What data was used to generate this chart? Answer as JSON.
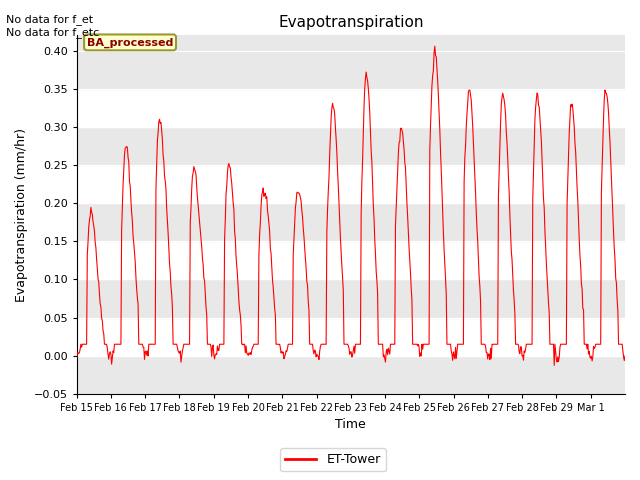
{
  "title": "Evapotranspiration",
  "xlabel": "Time",
  "ylabel": "Evapotranspiration (mm/hr)",
  "ylim": [
    -0.05,
    0.42
  ],
  "yticks": [
    -0.05,
    0.0,
    0.05,
    0.1,
    0.15,
    0.2,
    0.25,
    0.3,
    0.35,
    0.4
  ],
  "line_color": "#ff0000",
  "legend_label": "ET-Tower",
  "annotation_text": "No data for f_et\nNo data for f_etc",
  "box_label": "BA_processed",
  "fig_facecolor": "#ffffff",
  "plot_bg_color": "#f0f0f0",
  "band_color_light": "#ffffff",
  "band_color_dark": "#e8e8e8",
  "x_tick_labels": [
    "Feb 15",
    "Feb 16",
    "Feb 17",
    "Feb 18",
    "Feb 19",
    "Feb 20",
    "Feb 21",
    "Feb 22",
    "Feb 23",
    "Feb 24",
    "Feb 25",
    "Feb 26",
    "Feb 27",
    "Feb 28",
    "Feb 29",
    "Mar 1"
  ],
  "daily_peaks": [
    {
      "day": 0,
      "peaks": [
        {
          "t": 0.42,
          "v": 0.19
        },
        {
          "t": 0.46,
          "v": 0.15
        },
        {
          "t": 0.5,
          "v": 0.11
        }
      ]
    },
    {
      "day": 1,
      "peaks": [
        {
          "t": 0.4,
          "v": 0.21
        },
        {
          "t": 0.44,
          "v": 0.275
        },
        {
          "t": 0.5,
          "v": 0.22
        }
      ]
    },
    {
      "day": 2,
      "peaks": [
        {
          "t": 0.43,
          "v": 0.31
        },
        {
          "t": 0.48,
          "v": 0.265
        }
      ]
    },
    {
      "day": 3,
      "peaks": [
        {
          "t": 0.42,
          "v": 0.245
        },
        {
          "t": 0.47,
          "v": 0.22
        },
        {
          "t": 0.51,
          "v": 0.19
        }
      ]
    },
    {
      "day": 4,
      "peaks": [
        {
          "t": 0.44,
          "v": 0.25
        },
        {
          "t": 0.49,
          "v": 0.155
        }
      ]
    },
    {
      "day": 5,
      "peaks": [
        {
          "t": 0.44,
          "v": 0.22
        },
        {
          "t": 0.49,
          "v": 0.215
        }
      ]
    },
    {
      "day": 6,
      "peaks": [
        {
          "t": 0.44,
          "v": 0.215
        },
        {
          "t": 0.49,
          "v": 0.21
        }
      ]
    },
    {
      "day": 7,
      "peaks": [
        {
          "t": 0.42,
          "v": 0.265
        },
        {
          "t": 0.46,
          "v": 0.33
        }
      ]
    },
    {
      "day": 8,
      "peaks": [
        {
          "t": 0.44,
          "v": 0.37
        }
      ]
    },
    {
      "day": 9,
      "peaks": [
        {
          "t": 0.42,
          "v": 0.28
        },
        {
          "t": 0.46,
          "v": 0.3
        }
      ]
    },
    {
      "day": 10,
      "peaks": [
        {
          "t": 0.4,
          "v": 0.375
        },
        {
          "t": 0.44,
          "v": 0.4
        }
      ]
    },
    {
      "day": 11,
      "peaks": [
        {
          "t": 0.4,
          "v": 0.32
        },
        {
          "t": 0.44,
          "v": 0.35
        }
      ]
    },
    {
      "day": 12,
      "peaks": [
        {
          "t": 0.43,
          "v": 0.345
        }
      ]
    },
    {
      "day": 13,
      "peaks": [
        {
          "t": 0.43,
          "v": 0.345
        }
      ]
    },
    {
      "day": 14,
      "peaks": [
        {
          "t": 0.42,
          "v": 0.33
        }
      ]
    },
    {
      "day": 15,
      "peaks": [
        {
          "t": 0.43,
          "v": 0.35
        }
      ]
    }
  ]
}
